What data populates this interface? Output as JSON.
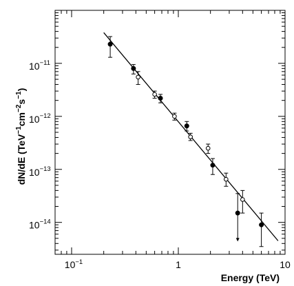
{
  "chart_data": {
    "type": "scatter",
    "xlabel": "Energy (TeV)",
    "ylabel_parts": [
      "dN/dE (TeV",
      "−1",
      "cm",
      "−2",
      "s",
      "−1",
      ")"
    ],
    "x_scale": "log",
    "y_scale": "log",
    "xlim": [
      0.07,
      10
    ],
    "ylim": [
      2.5e-15,
      1e-10
    ],
    "grid": false,
    "legend": "none",
    "x_ticks": [
      {
        "base": "10",
        "exp": "−1",
        "value": 0.1
      },
      {
        "base": "1",
        "exp": "",
        "value": 1
      },
      {
        "base": "10",
        "exp": "",
        "value": 10
      }
    ],
    "y_ticks": [
      {
        "base": "10",
        "exp": "−11",
        "value": 1e-11
      },
      {
        "base": "10",
        "exp": "−12",
        "value": 1e-12
      },
      {
        "base": "10",
        "exp": "−13",
        "value": 1e-13
      },
      {
        "base": "10",
        "exp": "−14",
        "value": 1e-14
      }
    ],
    "series": [
      {
        "marker": "filled-circle",
        "points": [
          {
            "x": 0.23,
            "y": 2.3e-11,
            "ylo": 1.3e-11,
            "yhi": 3.2e-11
          },
          {
            "x": 0.38,
            "y": 8e-12,
            "ylo": 6.3e-12,
            "yhi": 9.5e-12
          },
          {
            "x": 0.68,
            "y": 2.2e-12,
            "ylo": 1.8e-12,
            "yhi": 2.6e-12
          },
          {
            "x": 1.2,
            "y": 6.6e-13,
            "ylo": 5.3e-13,
            "yhi": 8e-13
          },
          {
            "x": 2.1,
            "y": 1.2e-13,
            "ylo": 8e-14,
            "yhi": 1.6e-13
          },
          {
            "x": 3.6,
            "y": 1.5e-14,
            "ylo": 4.5e-15,
            "yhi": 3.5e-14,
            "upper_limit_arrow": true
          },
          {
            "x": 6.0,
            "y": 9e-15,
            "ylo": 3.5e-15,
            "yhi": 1.5e-14
          }
        ]
      },
      {
        "marker": "open-circle",
        "points": [
          {
            "x": 0.42,
            "y": 5.5e-12,
            "ylo": 4e-12,
            "yhi": 7e-12
          },
          {
            "x": 0.6,
            "y": 2.6e-12,
            "ylo": 2.2e-12,
            "yhi": 3e-12
          },
          {
            "x": 0.92,
            "y": 1e-12,
            "ylo": 8.5e-13,
            "yhi": 1.15e-12
          },
          {
            "x": 1.3,
            "y": 4.1e-13,
            "ylo": 3.5e-13,
            "yhi": 4.8e-13
          },
          {
            "x": 1.9,
            "y": 2.5e-13,
            "ylo": 2e-13,
            "yhi": 3e-13
          },
          {
            "x": 2.8,
            "y": 6.5e-14,
            "ylo": 4.8e-14,
            "yhi": 8.5e-14
          },
          {
            "x": 4.0,
            "y": 2.7e-14,
            "ylo": 1.5e-14,
            "yhi": 4e-14
          }
        ]
      }
    ],
    "fit_line": {
      "type": "power-law",
      "points": [
        {
          "x": 0.2,
          "y": 3.8e-11
        },
        {
          "x": 8.6,
          "y": 4.5e-15
        }
      ]
    }
  }
}
